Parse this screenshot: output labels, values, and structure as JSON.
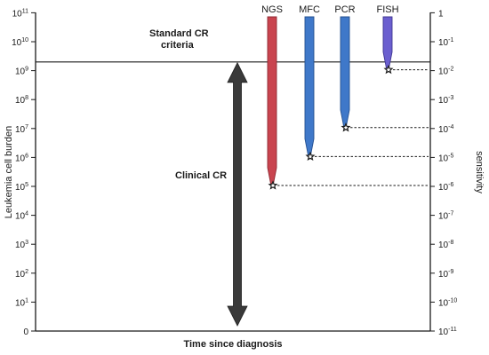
{
  "diagram": {
    "left_axis": {
      "title": "Leukemia cell burden",
      "ticks": [
        {
          "base": "10",
          "exp": "11"
        },
        {
          "base": "10",
          "exp": "10"
        },
        {
          "base": "10",
          "exp": "9"
        },
        {
          "base": "10",
          "exp": "8"
        },
        {
          "base": "10",
          "exp": "7"
        },
        {
          "base": "10",
          "exp": "6"
        },
        {
          "base": "10",
          "exp": "5"
        },
        {
          "base": "10",
          "exp": "4"
        },
        {
          "base": "10",
          "exp": "3"
        },
        {
          "base": "10",
          "exp": "2"
        },
        {
          "base": "10",
          "exp": "1"
        },
        {
          "base": "0",
          "exp": ""
        }
      ],
      "scale": "log"
    },
    "right_axis": {
      "title": "sensitivity",
      "ticks": [
        {
          "base": "1",
          "exp": ""
        },
        {
          "base": "10",
          "exp": "-1"
        },
        {
          "base": "10",
          "exp": "-2"
        },
        {
          "base": "10",
          "exp": "-3"
        },
        {
          "base": "10",
          "exp": "-4"
        },
        {
          "base": "10",
          "exp": "-5"
        },
        {
          "base": "10",
          "exp": "-6"
        },
        {
          "base": "10",
          "exp": "-7"
        },
        {
          "base": "10",
          "exp": "-8"
        },
        {
          "base": "10",
          "exp": "-9"
        },
        {
          "base": "10",
          "exp": "-10"
        },
        {
          "base": "10",
          "exp": "-11"
        }
      ],
      "scale": "log"
    },
    "x_axis": {
      "title": "Time since diagnosis"
    },
    "standard_cr": {
      "label_line1": "Standard CR",
      "label_line2": "criteria",
      "level_exp": 9.3
    },
    "clinical_cr": {
      "label": "Clinical CR",
      "top_exp": 9.3,
      "bottom_exp": 0
    },
    "methods": [
      {
        "name": "NGS",
        "color": "#c9444f",
        "stroke": "#8f2a33",
        "detection_exp": 5
      },
      {
        "name": "MFC",
        "color": "#3f78c9",
        "stroke": "#234f8f",
        "detection_exp": 6
      },
      {
        "name": "PCR",
        "color": "#3f78c9",
        "stroke": "#234f8f",
        "detection_exp": 7
      },
      {
        "name": "FISH",
        "color": "#6b5fcf",
        "stroke": "#3f3591",
        "detection_exp": 9
      }
    ],
    "arrow_color": "#3a3a3a"
  }
}
